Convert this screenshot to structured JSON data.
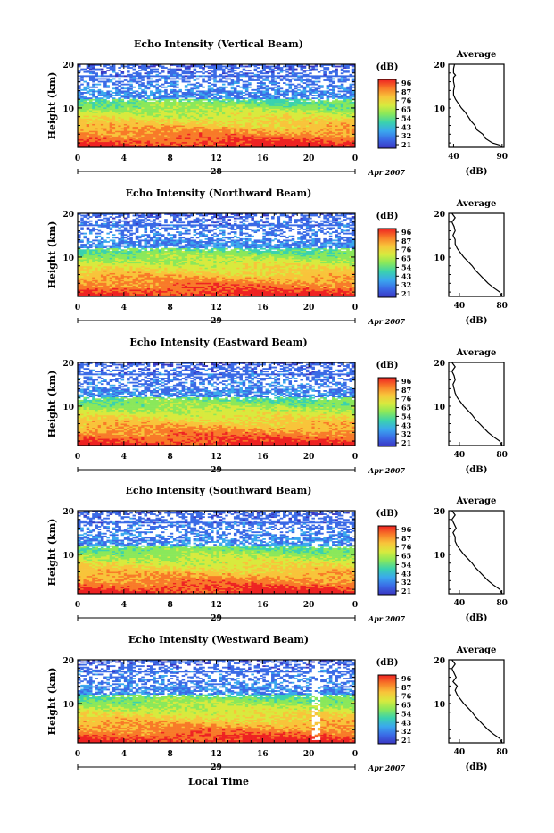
{
  "chart_data": {
    "type": "heatmap",
    "x_axis": {
      "label": "Local Time",
      "ticks": [
        "0",
        "4",
        "8",
        "12",
        "16",
        "20",
        "0"
      ],
      "xlim": [
        0,
        24
      ],
      "dates": [
        "28",
        "29",
        "29",
        "29",
        "29"
      ],
      "month_year": "Apr 2007"
    },
    "y_axis": {
      "label": "Height (km)",
      "ylim": [
        1,
        20
      ],
      "ticks": [
        "10",
        "20"
      ]
    },
    "colorbar": {
      "unit": "(dB)",
      "ticks": [
        "96",
        "87",
        "76",
        "65",
        "54",
        "43",
        "32",
        "21"
      ],
      "colors": [
        "#ee2222",
        "#f87a28",
        "#f8c43a",
        "#d8ea3e",
        "#8ae85a",
        "#3ad2ae",
        "#3aa8ee",
        "#3a6ae6",
        "#3a36c2"
      ]
    },
    "panels": [
      {
        "title": "Echo Intensity (Vertical Beam)",
        "date_label": "28",
        "cb_ticks": [
          "96",
          "87",
          "76",
          "65",
          "54",
          "43",
          "32",
          "21"
        ],
        "profile": {
          "title": "Average",
          "xlabel": "(dB)",
          "xticks": [
            "40",
            "90"
          ],
          "xlim": [
            35,
            92
          ],
          "points": [
            [
              90,
              1
            ],
            [
              88,
              1.5
            ],
            [
              80,
              2
            ],
            [
              73,
              3
            ],
            [
              70,
              4
            ],
            [
              64,
              5
            ],
            [
              62,
              6
            ],
            [
              58,
              7
            ],
            [
              55,
              8
            ],
            [
              52,
              9
            ],
            [
              48,
              10
            ],
            [
              45,
              11
            ],
            [
              42,
              12
            ],
            [
              40,
              13
            ],
            [
              40,
              14
            ],
            [
              41,
              15
            ],
            [
              40,
              16
            ],
            [
              40,
              17
            ],
            [
              42,
              17.5
            ],
            [
              40,
              18
            ],
            [
              40,
              19
            ],
            [
              41,
              20
            ]
          ]
        }
      },
      {
        "title": "Echo Intensity (Northward Beam)",
        "date_label": "29",
        "cb_ticks": [
          "96",
          "87",
          "76",
          "65",
          "54",
          "43",
          "32",
          "21"
        ],
        "profile": {
          "title": "Average",
          "xlabel": "(dB)",
          "xticks": [
            "40",
            "80"
          ],
          "xlim": [
            30,
            82
          ],
          "points": [
            [
              80,
              1
            ],
            [
              78,
              2
            ],
            [
              72,
              3
            ],
            [
              67,
              4
            ],
            [
              63,
              5
            ],
            [
              59,
              6
            ],
            [
              55,
              7
            ],
            [
              52,
              8
            ],
            [
              48,
              9
            ],
            [
              44,
              10
            ],
            [
              41,
              11
            ],
            [
              38,
              12
            ],
            [
              36,
              13
            ],
            [
              36,
              14
            ],
            [
              34,
              15
            ],
            [
              36,
              16
            ],
            [
              35,
              17
            ],
            [
              33,
              18
            ],
            [
              36,
              19
            ],
            [
              33,
              20
            ]
          ]
        }
      },
      {
        "title": "Echo Intensity (Eastward Beam)",
        "date_label": "29",
        "cb_ticks": [
          "96",
          "87",
          "76",
          "65",
          "54",
          "43",
          "32",
          "21"
        ],
        "profile": {
          "title": "Average",
          "xlabel": "(dB)",
          "xticks": [
            "40",
            "80"
          ],
          "xlim": [
            30,
            82
          ],
          "points": [
            [
              80,
              1
            ],
            [
              78,
              2
            ],
            [
              72,
              3
            ],
            [
              67,
              4
            ],
            [
              63,
              5
            ],
            [
              59,
              6
            ],
            [
              55,
              7
            ],
            [
              52,
              8
            ],
            [
              48,
              9
            ],
            [
              44,
              10
            ],
            [
              41,
              11
            ],
            [
              38,
              12
            ],
            [
              36,
              13
            ],
            [
              35,
              14
            ],
            [
              34,
              15
            ],
            [
              36,
              16
            ],
            [
              35,
              17
            ],
            [
              33,
              18
            ],
            [
              36,
              19
            ],
            [
              33,
              20
            ]
          ]
        }
      },
      {
        "title": "Echo Intensity (Southward Beam)",
        "date_label": "29",
        "cb_ticks": [
          "96",
          "87",
          "76",
          "65",
          "54",
          "43",
          "32",
          "21"
        ],
        "profile": {
          "title": "Average",
          "xlabel": "(dB)",
          "xticks": [
            "40",
            "80"
          ],
          "xlim": [
            30,
            82
          ],
          "points": [
            [
              80,
              1
            ],
            [
              78,
              2
            ],
            [
              72,
              3
            ],
            [
              67,
              4
            ],
            [
              63,
              5
            ],
            [
              59,
              6
            ],
            [
              55,
              7
            ],
            [
              52,
              8
            ],
            [
              48,
              9
            ],
            [
              44,
              10
            ],
            [
              41,
              11
            ],
            [
              38,
              12
            ],
            [
              36,
              13
            ],
            [
              36,
              14
            ],
            [
              34,
              15
            ],
            [
              37,
              16
            ],
            [
              35,
              17
            ],
            [
              33,
              18
            ],
            [
              36,
              19
            ],
            [
              33,
              20
            ]
          ]
        }
      },
      {
        "title": "Echo Intensity (Westward Beam)",
        "date_label": "29",
        "cb_ticks": [
          "96",
          "87",
          "76",
          "65",
          "54",
          "43",
          "32",
          "21"
        ],
        "profile": {
          "title": "Average",
          "xlabel": "(dB)",
          "xticks": [
            "40",
            "80"
          ],
          "xlim": [
            30,
            82
          ],
          "points": [
            [
              80,
              1
            ],
            [
              78,
              2
            ],
            [
              72,
              3
            ],
            [
              67,
              4
            ],
            [
              63,
              5
            ],
            [
              59,
              6
            ],
            [
              55,
              7
            ],
            [
              52,
              8
            ],
            [
              48,
              9
            ],
            [
              44,
              10
            ],
            [
              41,
              11
            ],
            [
              38,
              12
            ],
            [
              36,
              13
            ],
            [
              38,
              14
            ],
            [
              34,
              15
            ],
            [
              37,
              16
            ],
            [
              35,
              17
            ],
            [
              33,
              18
            ],
            [
              36,
              19
            ],
            [
              33,
              20
            ]
          ]
        }
      }
    ]
  }
}
